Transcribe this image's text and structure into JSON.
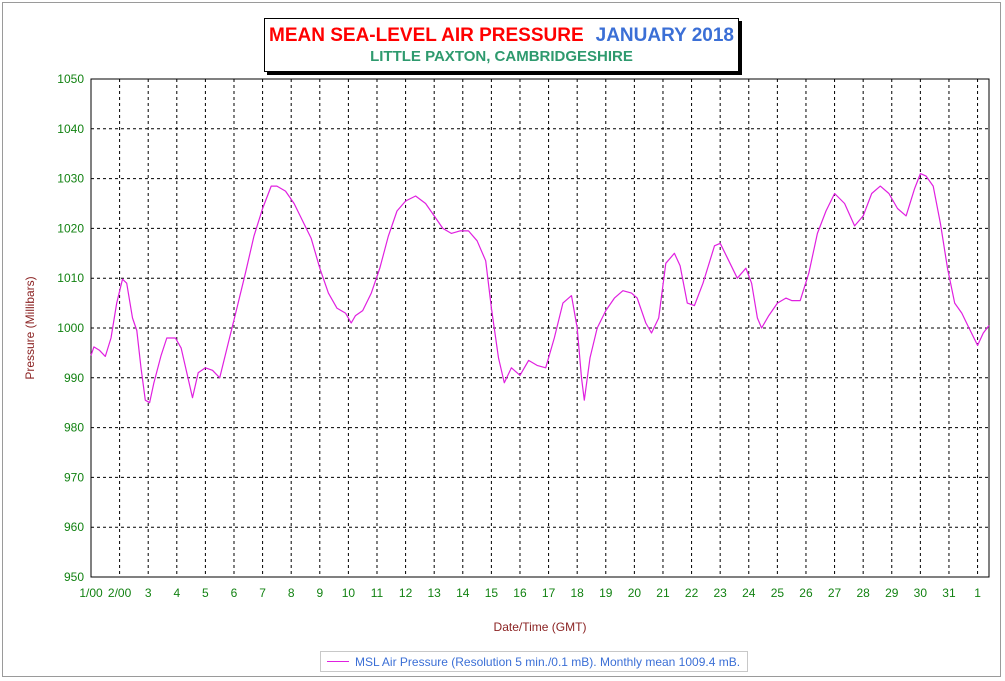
{
  "title": {
    "main": "MEAN SEA-LEVEL AIR PRESSURE",
    "month": "JANUARY 2018",
    "subtitle": "LITTLE PAXTON, CAMBRIDGESHIRE"
  },
  "colors": {
    "series": "#e020e0",
    "title_main": "#ff0000",
    "title_month": "#3b6fd6",
    "subtitle": "#2e9a6e",
    "tick_labels": "#128212",
    "axis_labels": "#8b2323",
    "legend_text": "#3b6fd6"
  },
  "legend": {
    "label": "MSL Air Pressure (Resolution 5 min./0.1 mB). Monthly mean 1009.4 mB."
  },
  "chart_data": {
    "type": "line",
    "title": "MEAN SEA-LEVEL AIR PRESSURE JANUARY 2018",
    "subtitle": "LITTLE PAXTON, CAMBRIDGESHIRE",
    "xlabel": "Date/Time (GMT)",
    "ylabel": "Pressure (Millibars)",
    "ylim": [
      950,
      1050
    ],
    "xlim": [
      1,
      32.4
    ],
    "grid": true,
    "legend_position": "bottom",
    "y_ticks": [
      950,
      960,
      970,
      980,
      990,
      1000,
      1010,
      1020,
      1030,
      1040,
      1050
    ],
    "x_ticks": [
      {
        "x": 1,
        "label": "1/00"
      },
      {
        "x": 2,
        "label": "2/00"
      },
      {
        "x": 3,
        "label": "3"
      },
      {
        "x": 4,
        "label": "4"
      },
      {
        "x": 5,
        "label": "5"
      },
      {
        "x": 6,
        "label": "6"
      },
      {
        "x": 7,
        "label": "7"
      },
      {
        "x": 8,
        "label": "8"
      },
      {
        "x": 9,
        "label": "9"
      },
      {
        "x": 10,
        "label": "10"
      },
      {
        "x": 11,
        "label": "11"
      },
      {
        "x": 12,
        "label": "12"
      },
      {
        "x": 13,
        "label": "13"
      },
      {
        "x": 14,
        "label": "14"
      },
      {
        "x": 15,
        "label": "15"
      },
      {
        "x": 16,
        "label": "16"
      },
      {
        "x": 17,
        "label": "17"
      },
      {
        "x": 18,
        "label": "18"
      },
      {
        "x": 19,
        "label": "19"
      },
      {
        "x": 20,
        "label": "20"
      },
      {
        "x": 21,
        "label": "21"
      },
      {
        "x": 22,
        "label": "22"
      },
      {
        "x": 23,
        "label": "23"
      },
      {
        "x": 24,
        "label": "24"
      },
      {
        "x": 25,
        "label": "25"
      },
      {
        "x": 26,
        "label": "26"
      },
      {
        "x": 27,
        "label": "27"
      },
      {
        "x": 28,
        "label": "28"
      },
      {
        "x": 29,
        "label": "29"
      },
      {
        "x": 30,
        "label": "30"
      },
      {
        "x": 31,
        "label": "31"
      },
      {
        "x": 32,
        "label": "1"
      }
    ],
    "series": [
      {
        "name": "MSL Air Pressure",
        "points": [
          [
            1.0,
            994.5
          ],
          [
            1.1,
            996.2
          ],
          [
            1.3,
            995.5
          ],
          [
            1.5,
            994.3
          ],
          [
            1.7,
            998.0
          ],
          [
            1.9,
            1005.0
          ],
          [
            2.1,
            1009.8
          ],
          [
            2.25,
            1009.0
          ],
          [
            2.45,
            1002.0
          ],
          [
            2.6,
            999.5
          ],
          [
            2.75,
            992.0
          ],
          [
            2.9,
            985.5
          ],
          [
            3.05,
            985.0
          ],
          [
            3.2,
            989.0
          ],
          [
            3.45,
            994.5
          ],
          [
            3.65,
            998.0
          ],
          [
            3.95,
            998.0
          ],
          [
            4.15,
            996.0
          ],
          [
            4.35,
            991.0
          ],
          [
            4.55,
            986.0
          ],
          [
            4.75,
            991.0
          ],
          [
            5.0,
            992.0
          ],
          [
            5.25,
            991.5
          ],
          [
            5.5,
            990.0
          ],
          [
            5.8,
            997.0
          ],
          [
            6.1,
            1004.0
          ],
          [
            6.4,
            1011.0
          ],
          [
            6.7,
            1018.5
          ],
          [
            7.0,
            1024.0
          ],
          [
            7.3,
            1028.5
          ],
          [
            7.5,
            1028.5
          ],
          [
            7.8,
            1027.5
          ],
          [
            8.1,
            1025.0
          ],
          [
            8.4,
            1021.5
          ],
          [
            8.7,
            1018.0
          ],
          [
            9.0,
            1012.0
          ],
          [
            9.3,
            1007.0
          ],
          [
            9.6,
            1004.0
          ],
          [
            9.9,
            1003.0
          ],
          [
            10.1,
            1001.0
          ],
          [
            10.25,
            1002.5
          ],
          [
            10.5,
            1003.5
          ],
          [
            10.8,
            1007.0
          ],
          [
            11.1,
            1012.0
          ],
          [
            11.4,
            1018.5
          ],
          [
            11.7,
            1023.5
          ],
          [
            12.0,
            1025.5
          ],
          [
            12.35,
            1026.5
          ],
          [
            12.7,
            1025.0
          ],
          [
            13.0,
            1022.5
          ],
          [
            13.3,
            1020.0
          ],
          [
            13.6,
            1019.0
          ],
          [
            13.9,
            1019.5
          ],
          [
            14.2,
            1019.5
          ],
          [
            14.5,
            1017.5
          ],
          [
            14.8,
            1013.5
          ],
          [
            15.0,
            1004.0
          ],
          [
            15.25,
            994.0
          ],
          [
            15.45,
            989.0
          ],
          [
            15.7,
            992.0
          ],
          [
            16.0,
            990.5
          ],
          [
            16.3,
            993.5
          ],
          [
            16.6,
            992.5
          ],
          [
            16.9,
            992.0
          ],
          [
            17.2,
            998.0
          ],
          [
            17.5,
            1005.0
          ],
          [
            17.8,
            1006.5
          ],
          [
            18.0,
            1000.0
          ],
          [
            18.15,
            990.0
          ],
          [
            18.25,
            985.5
          ],
          [
            18.45,
            994.0
          ],
          [
            18.7,
            1000.0
          ],
          [
            19.0,
            1003.5
          ],
          [
            19.3,
            1006.0
          ],
          [
            19.6,
            1007.5
          ],
          [
            19.9,
            1007.0
          ],
          [
            20.1,
            1006.0
          ],
          [
            20.4,
            1001.0
          ],
          [
            20.6,
            999.0
          ],
          [
            20.85,
            1002.0
          ],
          [
            21.1,
            1013.0
          ],
          [
            21.4,
            1015.0
          ],
          [
            21.6,
            1012.5
          ],
          [
            21.85,
            1005.0
          ],
          [
            22.1,
            1004.5
          ],
          [
            22.4,
            1009.0
          ],
          [
            22.8,
            1016.5
          ],
          [
            23.0,
            1017.0
          ],
          [
            23.3,
            1013.5
          ],
          [
            23.6,
            1010.0
          ],
          [
            23.9,
            1012.0
          ],
          [
            24.1,
            1009.0
          ],
          [
            24.3,
            1002.0
          ],
          [
            24.45,
            1000.0
          ],
          [
            24.7,
            1002.5
          ],
          [
            25.0,
            1005.0
          ],
          [
            25.3,
            1006.0
          ],
          [
            25.5,
            1005.5
          ],
          [
            25.8,
            1005.5
          ],
          [
            26.1,
            1011.0
          ],
          [
            26.4,
            1019.0
          ],
          [
            26.7,
            1023.5
          ],
          [
            27.0,
            1027.0
          ],
          [
            27.35,
            1025.0
          ],
          [
            27.7,
            1020.5
          ],
          [
            28.0,
            1022.5
          ],
          [
            28.3,
            1027.0
          ],
          [
            28.6,
            1028.5
          ],
          [
            28.9,
            1027.0
          ],
          [
            29.2,
            1024.0
          ],
          [
            29.5,
            1022.5
          ],
          [
            29.8,
            1028.0
          ],
          [
            30.0,
            1031.0
          ],
          [
            30.2,
            1030.5
          ],
          [
            30.45,
            1028.5
          ],
          [
            30.7,
            1021.0
          ],
          [
            30.95,
            1012.0
          ],
          [
            31.2,
            1005.0
          ],
          [
            31.45,
            1003.0
          ],
          [
            31.7,
            1000.0
          ],
          [
            32.0,
            996.5
          ],
          [
            32.2,
            999.0
          ],
          [
            32.4,
            1000.5
          ]
        ]
      }
    ]
  }
}
